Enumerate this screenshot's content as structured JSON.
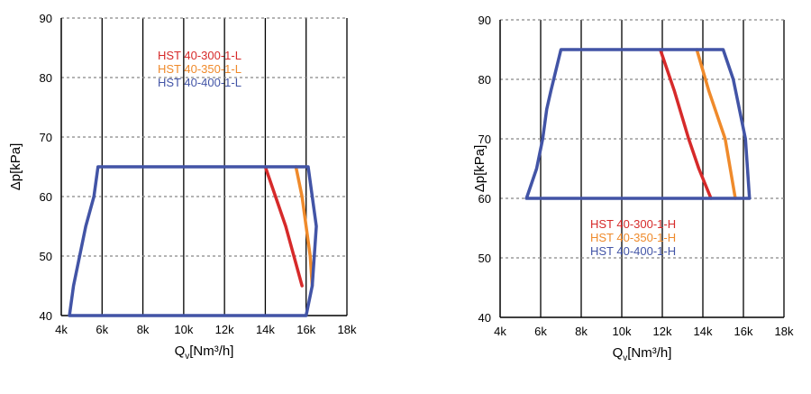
{
  "chart_data": [
    {
      "type": "line",
      "xlabel_main": "Q",
      "xlabel_sub": "v",
      "xlabel_unit": "[Nm³/h]",
      "ylabel": "Δp[kPa]",
      "xlim": [
        4000,
        18000
      ],
      "ylim": [
        40,
        90
      ],
      "x_ticks": [
        4000,
        6000,
        8000,
        10000,
        12000,
        14000,
        16000,
        18000
      ],
      "x_tick_labels": [
        "4k",
        "6k",
        "8k",
        "10k",
        "12k",
        "14k",
        "16k",
        "18k"
      ],
      "y_ticks": [
        40,
        50,
        60,
        70,
        80,
        90
      ],
      "y_tick_labels": [
        "40",
        "50",
        "60",
        "70",
        "80",
        "90"
      ],
      "grid": {
        "vertical": "solid",
        "horizontal": "dashed"
      },
      "legend_placement": "top-center",
      "series": [
        {
          "name": "HST 40-300-1-L",
          "color": "#d62a2a",
          "x": [
            14000,
            14500,
            15000,
            15400,
            15800
          ],
          "y": [
            65,
            60,
            55,
            50,
            45
          ]
        },
        {
          "name": "HST 40-350-1-L",
          "color": "#ef8a2b",
          "x": [
            15500,
            15800,
            16000,
            16200,
            16300
          ],
          "y": [
            65,
            60,
            55,
            50,
            45
          ]
        },
        {
          "name": "HST 40-400-1-L",
          "color": "#4254a6",
          "x": [
            4400,
            4600,
            4900,
            5200,
            5600,
            5800,
            16100,
            16500,
            16300,
            16000,
            4400
          ],
          "y": [
            40,
            45,
            50,
            55,
            60,
            65,
            65,
            55,
            45,
            40,
            40
          ]
        }
      ]
    },
    {
      "type": "line",
      "xlabel_main": "Q",
      "xlabel_sub": "v",
      "xlabel_unit": "[Nm³/h]",
      "ylabel": "Δp[kPa]",
      "xlim": [
        4000,
        18000
      ],
      "ylim": [
        40,
        90
      ],
      "x_ticks": [
        4000,
        6000,
        8000,
        10000,
        12000,
        14000,
        16000,
        18000
      ],
      "x_tick_labels": [
        "4k",
        "6k",
        "8k",
        "10k",
        "12k",
        "14k",
        "16k",
        "18k"
      ],
      "y_ticks": [
        40,
        50,
        60,
        70,
        80,
        90
      ],
      "y_tick_labels": [
        "40",
        "50",
        "60",
        "70",
        "80",
        "90"
      ],
      "grid": {
        "vertical": "solid",
        "horizontal": "dashed"
      },
      "legend_placement": "bottom-center",
      "series": [
        {
          "name": "HST 40-300-1-H",
          "color": "#d62a2a",
          "x": [
            11900,
            12600,
            13300,
            13800,
            14400
          ],
          "y": [
            85,
            78,
            70,
            65,
            60
          ]
        },
        {
          "name": "HST 40-350-1-H",
          "color": "#ef8a2b",
          "x": [
            13700,
            14300,
            15100,
            15600
          ],
          "y": [
            85,
            78,
            70,
            60
          ]
        },
        {
          "name": "HST 40-400-1-H",
          "color": "#4254a6",
          "x": [
            5300,
            5800,
            6100,
            6300,
            6500,
            7000,
            15000,
            15500,
            16100,
            16300,
            5300
          ],
          "y": [
            60,
            65,
            70,
            75,
            78,
            85,
            85,
            80,
            70,
            60,
            60
          ]
        }
      ]
    }
  ]
}
